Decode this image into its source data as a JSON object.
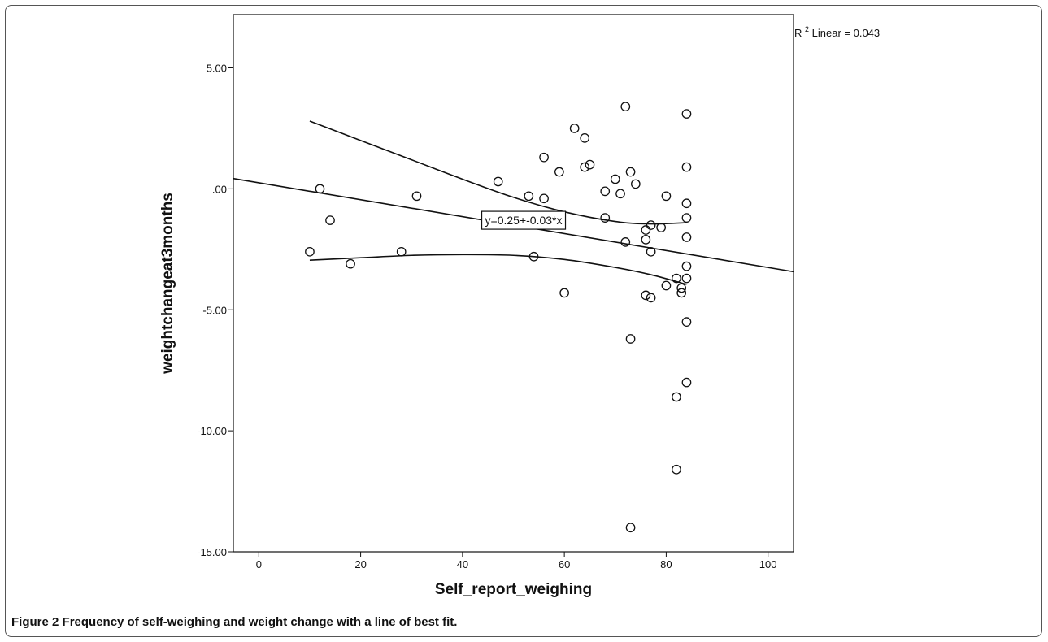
{
  "chart_data": {
    "type": "scatter",
    "title": "",
    "xlabel": "Self_report_weighing",
    "ylabel": "weightchangeat3months",
    "xlim": [
      -5,
      105
    ],
    "ylim": [
      -15,
      7.2
    ],
    "x_ticks": [
      0,
      20,
      40,
      60,
      80,
      100
    ],
    "x_tick_labels": [
      "0",
      "20",
      "40",
      "60",
      "80",
      "100"
    ],
    "y_ticks": [
      5,
      0,
      -5,
      -10,
      -15
    ],
    "y_tick_labels": [
      "5.00",
      ".00",
      "-5.00",
      "-10.00",
      "-15.00"
    ],
    "grid": false,
    "points": [
      {
        "x": 10,
        "y": -2.6
      },
      {
        "x": 12,
        "y": 0.0
      },
      {
        "x": 14,
        "y": -1.3
      },
      {
        "x": 18,
        "y": -3.1
      },
      {
        "x": 28,
        "y": -2.6
      },
      {
        "x": 31,
        "y": -0.3
      },
      {
        "x": 47,
        "y": 0.3
      },
      {
        "x": 53,
        "y": -0.3
      },
      {
        "x": 54,
        "y": -2.8
      },
      {
        "x": 56,
        "y": 1.3
      },
      {
        "x": 56,
        "y": -0.4
      },
      {
        "x": 59,
        "y": 0.7
      },
      {
        "x": 60,
        "y": -4.3
      },
      {
        "x": 62,
        "y": 2.5
      },
      {
        "x": 64,
        "y": 2.1
      },
      {
        "x": 64,
        "y": 0.9
      },
      {
        "x": 65,
        "y": 1.0
      },
      {
        "x": 68,
        "y": -0.1
      },
      {
        "x": 68,
        "y": -1.2
      },
      {
        "x": 70,
        "y": 0.4
      },
      {
        "x": 71,
        "y": -0.2
      },
      {
        "x": 72,
        "y": 3.4
      },
      {
        "x": 72,
        "y": -2.2
      },
      {
        "x": 73,
        "y": 0.7
      },
      {
        "x": 73,
        "y": -6.2
      },
      {
        "x": 73,
        "y": -14.0
      },
      {
        "x": 74,
        "y": 0.2
      },
      {
        "x": 76,
        "y": -1.7
      },
      {
        "x": 76,
        "y": -2.1
      },
      {
        "x": 76,
        "y": -4.4
      },
      {
        "x": 77,
        "y": -1.5
      },
      {
        "x": 77,
        "y": -2.6
      },
      {
        "x": 77,
        "y": -4.5
      },
      {
        "x": 79,
        "y": -1.6
      },
      {
        "x": 80,
        "y": -0.3
      },
      {
        "x": 80,
        "y": -4.0
      },
      {
        "x": 82,
        "y": -3.7
      },
      {
        "x": 82,
        "y": -8.6
      },
      {
        "x": 82,
        "y": -11.6
      },
      {
        "x": 83,
        "y": -4.1
      },
      {
        "x": 83,
        "y": -4.3
      },
      {
        "x": 84,
        "y": 3.1
      },
      {
        "x": 84,
        "y": 0.9
      },
      {
        "x": 84,
        "y": -0.6
      },
      {
        "x": 84,
        "y": -1.2
      },
      {
        "x": 84,
        "y": -2.0
      },
      {
        "x": 84,
        "y": -3.2
      },
      {
        "x": 84,
        "y": -3.7
      },
      {
        "x": 84,
        "y": -5.5
      },
      {
        "x": 84,
        "y": -8.0
      }
    ],
    "fit_line": {
      "intercept": 0.25,
      "slope": -0.035,
      "x_range": [
        -5,
        105
      ]
    },
    "confidence_upper": [
      {
        "x": 10,
        "y": 2.8
      },
      {
        "x": 20,
        "y": 2.0
      },
      {
        "x": 30,
        "y": 1.2
      },
      {
        "x": 40,
        "y": 0.4
      },
      {
        "x": 50,
        "y": -0.35
      },
      {
        "x": 60,
        "y": -0.95
      },
      {
        "x": 70,
        "y": -1.35
      },
      {
        "x": 77,
        "y": -1.45
      },
      {
        "x": 84,
        "y": -1.4
      }
    ],
    "confidence_lower": [
      {
        "x": 10,
        "y": -2.95
      },
      {
        "x": 20,
        "y": -2.85
      },
      {
        "x": 30,
        "y": -2.75
      },
      {
        "x": 40,
        "y": -2.72
      },
      {
        "x": 50,
        "y": -2.75
      },
      {
        "x": 60,
        "y": -2.92
      },
      {
        "x": 70,
        "y": -3.25
      },
      {
        "x": 77,
        "y": -3.55
      },
      {
        "x": 84,
        "y": -3.95
      }
    ],
    "equation_label": "y=0.25+-0.03*x",
    "equation_anchor": {
      "x": 52,
      "y": -1.3
    },
    "r2_label": {
      "prefix": "R",
      "superscript": "2",
      "suffix": " Linear = 0.043"
    }
  },
  "caption": {
    "label": "Figure 2",
    "text": "Frequency of self-weighing and weight change with a line of best fit."
  }
}
